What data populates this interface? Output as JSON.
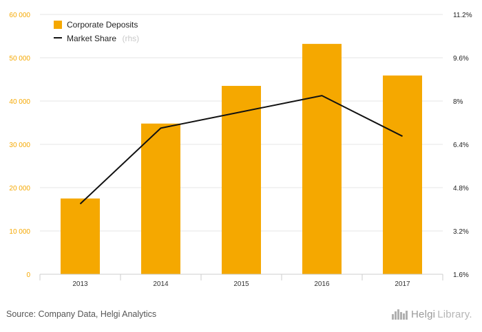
{
  "chart_data": {
    "type": "bar",
    "categories": [
      "2013",
      "2014",
      "2015",
      "2016",
      "2017"
    ],
    "series": [
      {
        "name": "Corporate Deposits",
        "type": "bar",
        "axis": "left",
        "color": "#f5a800",
        "values": [
          17500,
          34800,
          43500,
          53200,
          45900
        ]
      },
      {
        "name": "Market Share",
        "name_suffix": "(rhs)",
        "type": "line",
        "axis": "right",
        "color": "#111111",
        "values": [
          4.2,
          7.0,
          7.6,
          8.2,
          6.7
        ]
      }
    ],
    "y_left": {
      "min": 0,
      "max": 60000,
      "ticks": [
        0,
        10000,
        20000,
        30000,
        40000,
        50000,
        60000
      ],
      "tick_labels": [
        "0",
        "10 000",
        "20 000",
        "30 000",
        "40 000",
        "50 000",
        "60 000"
      ],
      "color": "#f5a800"
    },
    "y_right": {
      "min": 1.6,
      "max": 11.2,
      "ticks": [
        1.6,
        3.2,
        4.8,
        6.4,
        8,
        9.6,
        11.2
      ],
      "tick_labels": [
        "1.6%",
        "3.2%",
        "4.8%",
        "6.4%",
        "8%",
        "9.6%",
        "11.2%"
      ]
    },
    "grid": "horizontal",
    "legend_position": "top-left"
  },
  "footer": {
    "source": "Source: Company Data, Helgi Analytics",
    "logo_a": "Helgi",
    "logo_b": "Library."
  }
}
